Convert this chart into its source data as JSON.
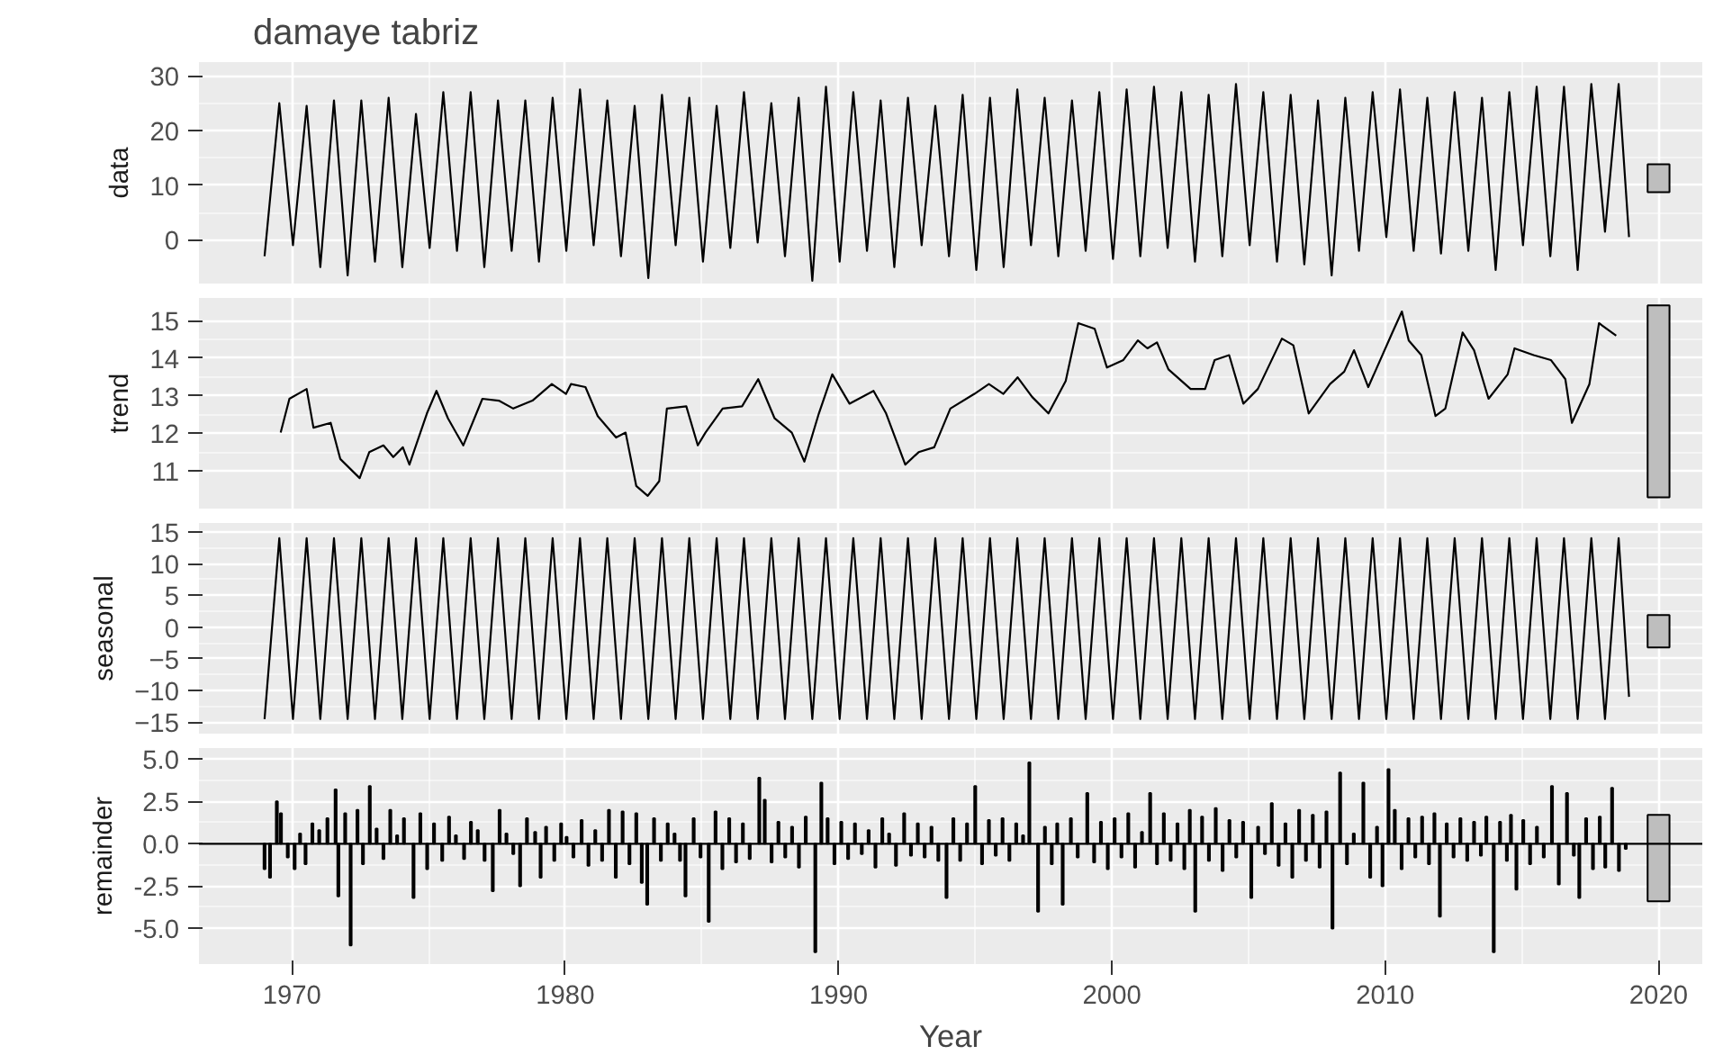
{
  "chart_data": [
    {
      "type": "line",
      "title": "damaye tabriz",
      "ylabel": "data",
      "xlim": [
        1966.6,
        2021.6
      ],
      "ylim": [
        -8,
        32.5
      ],
      "xticks": [
        1970,
        1980,
        1990,
        2000,
        2010,
        2020
      ],
      "yticks": [
        0,
        10,
        20,
        30
      ],
      "grid": true,
      "tick_labels": "y",
      "series": [
        {
          "color": "#000000",
          "x": [
            1969.0,
            1969.54,
            1970.04,
            1970.54,
            1971.04,
            1971.54,
            1972.04,
            1972.54,
            1973.04,
            1973.54,
            1974.04,
            1974.54,
            1975.04,
            1975.54,
            1976.04,
            1976.54,
            1977.04,
            1977.54,
            1978.04,
            1978.54,
            1979.04,
            1979.54,
            1980.04,
            1980.54,
            1981.04,
            1981.54,
            1982.04,
            1982.54,
            1983.04,
            1983.54,
            1984.04,
            1984.54,
            1985.04,
            1985.54,
            1986.04,
            1986.54,
            1987.04,
            1987.54,
            1988.04,
            1988.54,
            1989.04,
            1989.54,
            1990.04,
            1990.54,
            1991.04,
            1991.54,
            1992.04,
            1992.54,
            1993.04,
            1993.54,
            1994.04,
            1994.54,
            1995.04,
            1995.54,
            1996.04,
            1996.54,
            1997.04,
            1997.54,
            1998.04,
            1998.54,
            1999.04,
            1999.54,
            2000.04,
            2000.54,
            2001.04,
            2001.54,
            2002.04,
            2002.54,
            2003.04,
            2003.54,
            2004.04,
            2004.54,
            2005.04,
            2005.54,
            2006.04,
            2006.54,
            2007.04,
            2007.54,
            2008.04,
            2008.54,
            2009.04,
            2009.54,
            2010.04,
            2010.54,
            2011.04,
            2011.54,
            2012.04,
            2012.54,
            2013.04,
            2013.54,
            2014.04,
            2014.54,
            2015.04,
            2015.54,
            2016.04,
            2016.54,
            2017.04,
            2017.54,
            2018.04,
            2018.54,
            2018.92
          ],
          "values": [
            -3,
            25,
            -1,
            24.5,
            -5,
            25.5,
            -6.5,
            25.5,
            -4,
            26,
            -5,
            23,
            -1.5,
            27,
            -2,
            27,
            -5,
            25.5,
            -2,
            25.5,
            -4,
            26,
            -2,
            27.5,
            -1,
            25.5,
            -3,
            24.5,
            -7,
            26.5,
            -1,
            26,
            -4,
            24.5,
            -1.5,
            27,
            -0.5,
            25,
            -3,
            26,
            -7.5,
            28,
            -4,
            27,
            -2,
            25.5,
            -5,
            26,
            -1,
            24.5,
            -3,
            26.5,
            -5.5,
            26,
            -5,
            27.5,
            -1,
            26,
            -3,
            25.5,
            -2,
            27,
            -3.5,
            27.5,
            -3,
            28,
            -1.5,
            27,
            -4,
            26.5,
            -3,
            28.5,
            -1,
            27,
            -4,
            26.5,
            -4.5,
            25.5,
            -6.5,
            26,
            -2,
            27,
            0.5,
            27.5,
            -2,
            26,
            -2.5,
            27,
            -2,
            26,
            -5.5,
            27,
            -1,
            28,
            -3,
            28,
            -5.5,
            28.5,
            1.5,
            28.5,
            0.5
          ]
        },
        {
          "type": "bar",
          "color": "#bebebe",
          "x": [
            2020
          ],
          "base": [
            8.7
          ],
          "values": [
            5.1
          ]
        }
      ]
    },
    {
      "type": "line",
      "ylabel": "trend",
      "xlim": [
        1966.6,
        2021.6
      ],
      "ylim": [
        10,
        15.6
      ],
      "xticks": [
        1970,
        1980,
        1990,
        2000,
        2010,
        2020
      ],
      "yticks": [
        11,
        12,
        13,
        14,
        15
      ],
      "grid": true,
      "tick_labels": "y",
      "series": [
        {
          "color": "#000000",
          "x": [
            1969.59,
            1969.91,
            1970.54,
            1970.79,
            1971.42,
            1971.77,
            1972.48,
            1972.83,
            1973.35,
            1973.71,
            1974.06,
            1974.3,
            1974.94,
            1975.29,
            1975.71,
            1976.27,
            1976.97,
            1977.57,
            1978.1,
            1978.8,
            1979.51,
            1980.03,
            1980.21,
            1980.74,
            1981.19,
            1981.86,
            1982.21,
            1982.6,
            1983.02,
            1983.44,
            1983.72,
            1984.43,
            1984.85,
            1985.13,
            1985.76,
            1986.47,
            1987.06,
            1987.66,
            1988.29,
            1988.75,
            1989.28,
            1989.77,
            1990.4,
            1991.28,
            1991.74,
            1992.44,
            1992.93,
            1993.5,
            1994.09,
            1994.97,
            1995.5,
            1996.03,
            1996.55,
            1997.08,
            1997.68,
            1998.31,
            1998.77,
            1999.37,
            1999.82,
            2000.42,
            2000.95,
            2001.3,
            2001.65,
            2002.07,
            2002.88,
            2003.41,
            2003.76,
            2004.29,
            2004.81,
            2005.34,
            2006.22,
            2006.64,
            2007.2,
            2007.98,
            2008.5,
            2008.86,
            2009.38,
            2010.26,
            2010.61,
            2010.86,
            2011.32,
            2011.84,
            2012.2,
            2012.83,
            2013.25,
            2013.78,
            2014.48,
            2014.73,
            2015.43,
            2016.06,
            2016.59,
            2016.83,
            2017.47,
            2017.82,
            2018.45
          ],
          "values": [
            12.02,
            12.92,
            13.18,
            12.15,
            12.28,
            11.32,
            10.81,
            11.5,
            11.68,
            11.37,
            11.63,
            11.17,
            12.53,
            13.13,
            12.4,
            11.68,
            12.92,
            12.87,
            12.66,
            12.87,
            13.31,
            13.05,
            13.31,
            13.23,
            12.46,
            11.89,
            12.02,
            10.6,
            10.34,
            10.73,
            12.66,
            12.72,
            11.68,
            12.02,
            12.66,
            12.72,
            13.44,
            12.4,
            12.02,
            11.25,
            12.53,
            13.57,
            12.79,
            13.13,
            12.53,
            11.17,
            11.5,
            11.63,
            12.66,
            13.05,
            13.31,
            13.05,
            13.49,
            12.97,
            12.53,
            13.39,
            14.93,
            14.78,
            13.75,
            13.95,
            14.47,
            14.26,
            14.42,
            13.7,
            13.18,
            13.18,
            13.95,
            14.08,
            12.79,
            13.18,
            14.52,
            14.34,
            12.53,
            13.31,
            13.64,
            14.21,
            13.23,
            14.68,
            15.24,
            14.47,
            14.08,
            12.46,
            12.66,
            14.68,
            14.21,
            12.92,
            13.57,
            14.26,
            14.08,
            13.95,
            13.44,
            12.28,
            13.31,
            14.93,
            14.6
          ]
        },
        {
          "type": "bar",
          "color": "#bebebe",
          "x": [
            2020
          ],
          "base": [
            10.3
          ],
          "values": [
            5.1
          ]
        }
      ]
    },
    {
      "type": "line",
      "ylabel": "seasonal",
      "xlim": [
        1966.6,
        2021.6
      ],
      "ylim": [
        -16.8,
        16.4
      ],
      "xticks": [
        1970,
        1980,
        1990,
        2000,
        2010,
        2020
      ],
      "yticks": [
        -15,
        -10,
        -5,
        0,
        5,
        10,
        15
      ],
      "grid": true,
      "tick_labels": "y",
      "series": [
        {
          "color": "#000000",
          "x": [
            1969.0,
            1969.54,
            1970.04,
            1970.54,
            1971.04,
            1971.54,
            1972.04,
            1972.54,
            1973.04,
            1973.54,
            1974.04,
            1974.54,
            1975.04,
            1975.54,
            1976.04,
            1976.54,
            1977.04,
            1977.54,
            1978.04,
            1978.54,
            1979.04,
            1979.54,
            1980.04,
            1980.54,
            1981.04,
            1981.54,
            1982.04,
            1982.54,
            1983.04,
            1983.54,
            1984.04,
            1984.54,
            1985.04,
            1985.54,
            1986.04,
            1986.54,
            1987.04,
            1987.54,
            1988.04,
            1988.54,
            1989.04,
            1989.54,
            1990.04,
            1990.54,
            1991.04,
            1991.54,
            1992.04,
            1992.54,
            1993.04,
            1993.54,
            1994.04,
            1994.54,
            1995.04,
            1995.54,
            1996.04,
            1996.54,
            1997.04,
            1997.54,
            1998.04,
            1998.54,
            1999.04,
            1999.54,
            2000.04,
            2000.54,
            2001.04,
            2001.54,
            2002.04,
            2002.54,
            2003.04,
            2003.54,
            2004.04,
            2004.54,
            2005.04,
            2005.54,
            2006.04,
            2006.54,
            2007.04,
            2007.54,
            2008.04,
            2008.54,
            2009.04,
            2009.54,
            2010.04,
            2010.54,
            2011.04,
            2011.54,
            2012.04,
            2012.54,
            2013.04,
            2013.54,
            2014.04,
            2014.54,
            2015.04,
            2015.54,
            2016.04,
            2016.54,
            2017.04,
            2017.54,
            2018.04,
            2018.54,
            2018.92
          ],
          "values": [
            -14.5,
            14,
            -14.5,
            14,
            -14.5,
            14,
            -14.5,
            14,
            -14.5,
            14,
            -14.5,
            14,
            -14.5,
            14,
            -14.5,
            14,
            -14.5,
            14,
            -14.5,
            14,
            -14.5,
            14,
            -14.5,
            14,
            -14.5,
            14,
            -14.5,
            14,
            -14.5,
            14,
            -14.5,
            14,
            -14.5,
            14,
            -14.5,
            14,
            -14.5,
            14,
            -14.5,
            14,
            -14.5,
            14,
            -14.5,
            14,
            -14.5,
            14,
            -14.5,
            14,
            -14.5,
            14,
            -14.5,
            14,
            -14.5,
            14,
            -14.5,
            14,
            -14.5,
            14,
            -14.5,
            14,
            -14.5,
            14,
            -14.5,
            14,
            -14.5,
            14,
            -14.5,
            14,
            -14.5,
            14,
            -14.5,
            14,
            -14.5,
            14,
            -14.5,
            14,
            -14.5,
            14,
            -14.5,
            14,
            -14.5,
            14,
            -14.5,
            14,
            -14.5,
            14,
            -14.5,
            14,
            -14.5,
            14,
            -14.5,
            14,
            -14.5,
            14,
            -14.5,
            14,
            -14.5,
            14,
            -14.5,
            14,
            -11
          ]
        },
        {
          "type": "bar",
          "color": "#bebebe",
          "x": [
            2020
          ],
          "base": [
            -3.2
          ],
          "values": [
            5.1
          ]
        }
      ]
    },
    {
      "type": "bar",
      "ylabel": "remainder",
      "xlabel": "Year",
      "xlim": [
        1966.6,
        2021.6
      ],
      "ylim": [
        -7.1,
        5.65
      ],
      "xticks": [
        1970,
        1980,
        1990,
        2000,
        2010,
        2020
      ],
      "yticks": [
        {
          "value": -5,
          "label": "-5.0"
        },
        {
          "value": -2.5,
          "label": "-2.5"
        },
        {
          "value": 0,
          "label": "0.0"
        },
        {
          "value": 2.5,
          "label": "2.5"
        },
        {
          "value": 5,
          "label": "5.0"
        }
      ],
      "grid": true,
      "ref_lines": [
        {
          "axis": "y",
          "value": 0,
          "color": "#000000"
        }
      ],
      "series": [
        {
          "color": "#000000",
          "x": [
            1969.0,
            1969.2,
            1969.45,
            1969.6,
            1969.85,
            1970.1,
            1970.3,
            1970.5,
            1970.75,
            1971.0,
            1971.3,
            1971.6,
            1971.7,
            1971.95,
            1972.15,
            1972.4,
            1972.6,
            1972.85,
            1973.1,
            1973.35,
            1973.6,
            1973.85,
            1974.1,
            1974.45,
            1974.7,
            1974.95,
            1975.2,
            1975.5,
            1975.75,
            1976.0,
            1976.3,
            1976.55,
            1976.8,
            1977.05,
            1977.35,
            1977.6,
            1977.85,
            1978.1,
            1978.35,
            1978.6,
            1978.9,
            1979.1,
            1979.3,
            1979.6,
            1979.85,
            1980.05,
            1980.3,
            1980.6,
            1980.85,
            1981.1,
            1981.35,
            1981.6,
            1981.85,
            1982.1,
            1982.35,
            1982.6,
            1982.8,
            1983.0,
            1983.25,
            1983.5,
            1983.75,
            1984.0,
            1984.2,
            1984.4,
            1984.7,
            1984.95,
            1985.25,
            1985.5,
            1985.75,
            1986.0,
            1986.25,
            1986.5,
            1986.75,
            1987.1,
            1987.3,
            1987.55,
            1987.8,
            1988.05,
            1988.3,
            1988.55,
            1988.8,
            1989.15,
            1989.37,
            1989.6,
            1989.85,
            1990.1,
            1990.35,
            1990.6,
            1990.85,
            1991.1,
            1991.35,
            1991.6,
            1991.85,
            1992.1,
            1992.4,
            1992.65,
            1992.9,
            1993.15,
            1993.4,
            1993.65,
            1993.95,
            1994.2,
            1994.45,
            1994.7,
            1995.0,
            1995.25,
            1995.5,
            1995.75,
            1996.0,
            1996.25,
            1996.5,
            1996.75,
            1996.98,
            1997.3,
            1997.55,
            1997.8,
            1998.0,
            1998.2,
            1998.5,
            1998.75,
            1999.1,
            1999.35,
            1999.6,
            1999.85,
            2000.1,
            2000.35,
            2000.6,
            2000.85,
            2001.1,
            2001.4,
            2001.65,
            2001.9,
            2002.15,
            2002.4,
            2002.65,
            2002.85,
            2003.05,
            2003.3,
            2003.55,
            2003.8,
            2004.05,
            2004.3,
            2004.55,
            2004.8,
            2005.1,
            2005.35,
            2005.6,
            2005.85,
            2006.1,
            2006.35,
            2006.6,
            2006.85,
            2007.1,
            2007.35,
            2007.6,
            2007.85,
            2008.07,
            2008.35,
            2008.6,
            2008.85,
            2009.2,
            2009.45,
            2009.7,
            2009.9,
            2010.12,
            2010.35,
            2010.6,
            2010.85,
            2011.1,
            2011.35,
            2011.6,
            2011.8,
            2012.0,
            2012.25,
            2012.5,
            2012.75,
            2013.0,
            2013.25,
            2013.5,
            2013.7,
            2013.97,
            2014.2,
            2014.45,
            2014.6,
            2014.8,
            2015.05,
            2015.3,
            2015.55,
            2015.8,
            2016.1,
            2016.35,
            2016.65,
            2016.9,
            2017.1,
            2017.35,
            2017.6,
            2017.85,
            2018.05,
            2018.3,
            2018.55,
            2018.8
          ],
          "values": [
            -1.5,
            -2.0,
            2.5,
            1.8,
            -0.8,
            -1.5,
            0.6,
            -1.2,
            1.2,
            0.8,
            1.5,
            3.2,
            -3.1,
            1.8,
            -6.0,
            2.0,
            -1.2,
            3.4,
            0.9,
            -0.9,
            2.0,
            0.5,
            1.5,
            -3.2,
            1.8,
            -1.5,
            1.2,
            -1.0,
            1.6,
            0.5,
            -0.9,
            1.3,
            0.8,
            -1.0,
            -2.8,
            2.0,
            0.6,
            -0.6,
            -2.5,
            1.5,
            0.7,
            -2.0,
            1.0,
            -1.0,
            1.2,
            0.4,
            -0.8,
            1.4,
            -1.3,
            0.8,
            -1.0,
            2.0,
            -2.0,
            1.9,
            -1.2,
            1.8,
            -2.3,
            -3.6,
            1.5,
            -1.0,
            1.2,
            0.6,
            -1.0,
            -3.1,
            1.5,
            -0.8,
            -4.6,
            1.9,
            -1.5,
            1.5,
            -1.1,
            1.2,
            -0.9,
            3.9,
            2.6,
            -1.1,
            1.3,
            -0.8,
            1.0,
            -1.4,
            1.6,
            -6.4,
            3.6,
            1.5,
            -1.2,
            1.3,
            -0.9,
            1.2,
            -0.6,
            0.8,
            -1.4,
            1.5,
            0.6,
            -1.3,
            1.8,
            -0.7,
            1.2,
            -0.8,
            1.0,
            -1.0,
            -3.2,
            1.5,
            -1.0,
            1.2,
            3.4,
            -1.2,
            1.4,
            -0.7,
            1.5,
            -1.0,
            1.2,
            0.5,
            4.8,
            -4.0,
            1.0,
            -1.2,
            1.2,
            -3.6,
            1.5,
            -0.8,
            3.0,
            -1.1,
            1.3,
            -1.5,
            1.5,
            -0.8,
            1.8,
            -1.4,
            0.7,
            3.0,
            -1.2,
            1.8,
            -1.0,
            1.2,
            -1.5,
            2.0,
            -4.0,
            1.6,
            -1.0,
            2.1,
            -1.6,
            1.4,
            -0.8,
            1.3,
            -3.2,
            1.0,
            -0.6,
            2.4,
            -1.3,
            1.2,
            -2.0,
            2.0,
            -1.0,
            1.7,
            -1.4,
            1.9,
            -5.0,
            4.2,
            -1.2,
            0.6,
            3.6,
            -2.0,
            1.0,
            -2.5,
            4.4,
            2.0,
            -1.5,
            1.5,
            -0.8,
            1.6,
            -1.2,
            1.8,
            -4.3,
            1.2,
            -0.8,
            1.5,
            -1.0,
            1.3,
            -0.7,
            1.6,
            -6.4,
            1.3,
            -1.0,
            1.7,
            -2.7,
            1.4,
            -1.2,
            1.0,
            -0.8,
            3.4,
            -2.4,
            3.0,
            -0.7,
            -3.2,
            1.5,
            -1.5,
            1.6,
            -1.4,
            3.3,
            -1.6,
            -0.3
          ]
        },
        {
          "type": "bar",
          "color": "#bebebe",
          "x": [
            2020
          ],
          "base": [
            -3.4
          ],
          "values": [
            5.1
          ]
        }
      ]
    }
  ]
}
